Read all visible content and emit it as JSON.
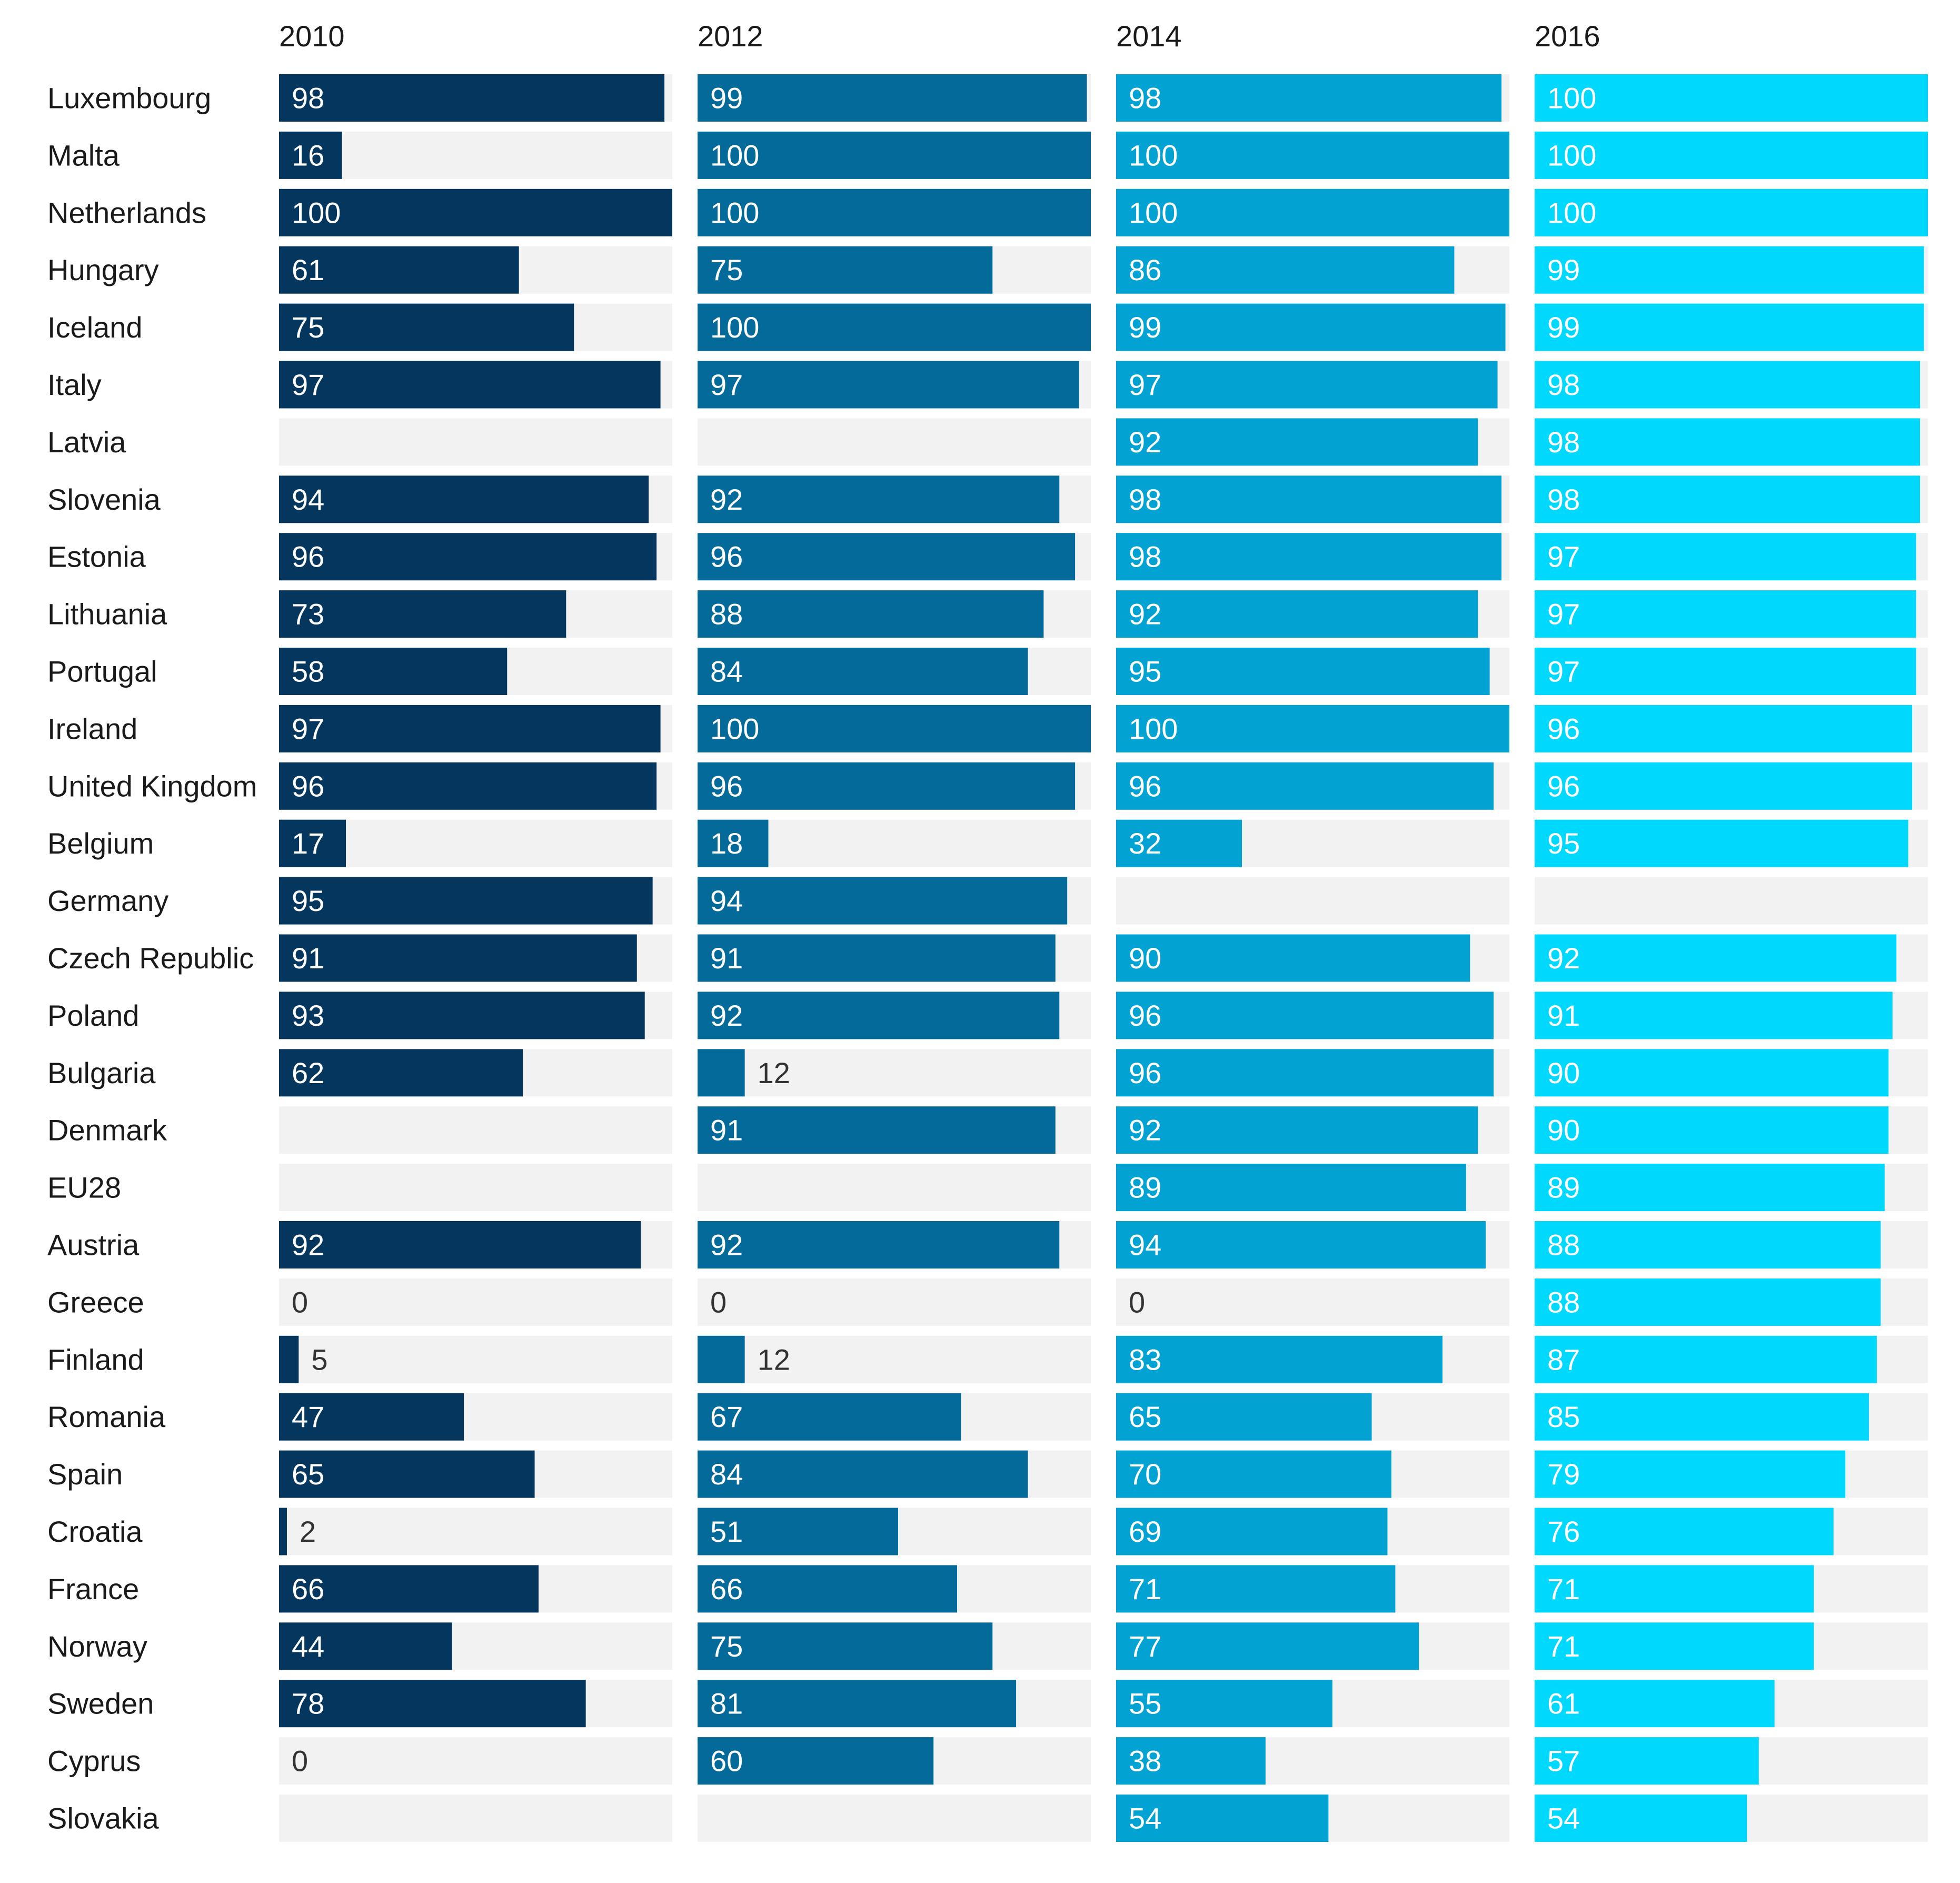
{
  "chart_data": {
    "type": "bar",
    "orientation": "horizontal",
    "layout": "small-multiples",
    "title": "",
    "xlim": [
      0,
      100
    ],
    "grid": false,
    "legend": "none",
    "categories": [
      "Luxembourg",
      "Malta",
      "Netherlands",
      "Hungary",
      "Iceland",
      "Italy",
      "Latvia",
      "Slovenia",
      "Estonia",
      "Lithuania",
      "Portugal",
      "Ireland",
      "United Kingdom",
      "Belgium",
      "Germany",
      "Czech Republic",
      "Poland",
      "Bulgaria",
      "Denmark",
      "EU28",
      "Austria",
      "Greece",
      "Finland",
      "Romania",
      "Spain",
      "Croatia",
      "France",
      "Norway",
      "Sweden",
      "Cyprus",
      "Slovakia"
    ],
    "series": [
      {
        "name": "2010",
        "color": "#04365e",
        "values": [
          98,
          16,
          100,
          61,
          75,
          97,
          null,
          94,
          96,
          73,
          58,
          97,
          96,
          17,
          95,
          91,
          93,
          62,
          null,
          null,
          92,
          0,
          5,
          47,
          65,
          2,
          66,
          44,
          78,
          0,
          null
        ]
      },
      {
        "name": "2012",
        "color": "#036a9a",
        "values": [
          99,
          100,
          100,
          75,
          100,
          97,
          null,
          92,
          96,
          88,
          84,
          100,
          96,
          18,
          94,
          91,
          92,
          12,
          91,
          null,
          92,
          0,
          12,
          67,
          84,
          51,
          66,
          75,
          81,
          60,
          null
        ]
      },
      {
        "name": "2014",
        "color": "#02a3d2",
        "values": [
          98,
          100,
          100,
          86,
          99,
          97,
          92,
          98,
          98,
          92,
          95,
          100,
          96,
          32,
          null,
          90,
          96,
          96,
          92,
          89,
          94,
          0,
          83,
          65,
          70,
          69,
          71,
          77,
          55,
          38,
          54
        ]
      },
      {
        "name": "2016",
        "color": "#00d8fd",
        "values": [
          100,
          100,
          100,
          99,
          99,
          98,
          98,
          98,
          97,
          97,
          97,
          96,
          96,
          95,
          null,
          92,
          91,
          90,
          90,
          89,
          88,
          88,
          87,
          85,
          79,
          76,
          71,
          71,
          61,
          57,
          54
        ]
      }
    ],
    "track_color": "#f2f2f2"
  }
}
